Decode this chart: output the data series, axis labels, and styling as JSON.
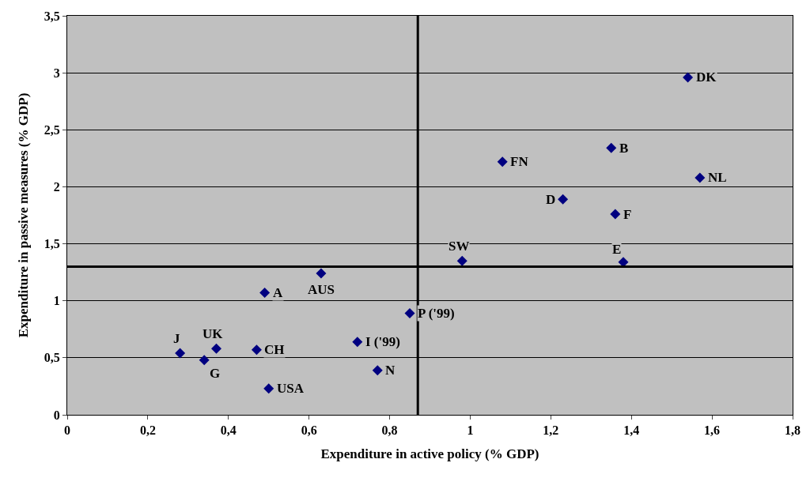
{
  "chart_data": {
    "type": "scatter",
    "xlabel": "Expenditure in active policy (% GDP)",
    "ylabel": "Expenditure in passive measures (% GDP)",
    "x": [
      1.54,
      1.35,
      1.57,
      1.08,
      1.23,
      1.36,
      0.98,
      1.38,
      0.63,
      0.49,
      0.85,
      0.72,
      0.28,
      0.37,
      0.34,
      0.47,
      0.77,
      0.5
    ],
    "series": [
      {
        "color": "#000080",
        "values": [
          2.96,
          2.34,
          2.08,
          2.22,
          1.89,
          1.76,
          1.35,
          1.34,
          1.24,
          1.07,
          0.89,
          0.64,
          0.54,
          0.58,
          0.48,
          0.57,
          0.39,
          0.23
        ]
      }
    ],
    "annotations": [
      {
        "text": "DK",
        "x": 1.54,
        "y": 2.96
      },
      {
        "text": "B",
        "x": 1.35,
        "y": 2.34
      },
      {
        "text": "NL",
        "x": 1.57,
        "y": 2.08
      },
      {
        "text": "FN",
        "x": 1.08,
        "y": 2.22
      },
      {
        "text": "D",
        "x": 1.23,
        "y": 1.89
      },
      {
        "text": "F",
        "x": 1.36,
        "y": 1.76
      },
      {
        "text": "SW",
        "x": 0.98,
        "y": 1.35
      },
      {
        "text": "E",
        "x": 1.38,
        "y": 1.34
      },
      {
        "text": "AUS",
        "x": 0.63,
        "y": 1.24
      },
      {
        "text": "A",
        "x": 0.49,
        "y": 1.07
      },
      {
        "text": "P ('99)",
        "x": 0.85,
        "y": 0.89
      },
      {
        "text": "I ('99)",
        "x": 0.72,
        "y": 0.64
      },
      {
        "text": "J",
        "x": 0.28,
        "y": 0.54
      },
      {
        "text": "UK",
        "x": 0.37,
        "y": 0.58
      },
      {
        "text": "G",
        "x": 0.34,
        "y": 0.48
      },
      {
        "text": "CH",
        "x": 0.47,
        "y": 0.57
      },
      {
        "text": "N",
        "x": 0.77,
        "y": 0.39
      },
      {
        "text": "USA",
        "x": 0.5,
        "y": 0.23
      }
    ],
    "ref_lines": [
      {
        "axis": "x",
        "value": 0.87,
        "color": "#000000"
      },
      {
        "axis": "y",
        "value": 1.3,
        "color": "#000000"
      }
    ],
    "xlim": [
      0,
      1.8
    ],
    "xticks": [
      0,
      {
        "value": 0.2,
        "label": "0,2"
      },
      {
        "value": 0.4,
        "label": "0,4"
      },
      {
        "value": 0.6,
        "label": "0,6"
      },
      {
        "value": 0.8,
        "label": "0,8"
      },
      1,
      {
        "value": 1.2,
        "label": "1,2"
      },
      {
        "value": 1.4,
        "label": "1,4"
      },
      {
        "value": 1.6,
        "label": "1,6"
      },
      {
        "value": 1.8,
        "label": "1,8"
      }
    ],
    "ylim": [
      0,
      3.5
    ],
    "yticks": [
      0,
      {
        "value": 0.5,
        "label": "0,5"
      },
      1,
      {
        "value": 1.5,
        "label": "1,5"
      },
      2,
      {
        "value": 2.5,
        "label": "2,5"
      },
      3,
      {
        "value": 3.5,
        "label": "3,5"
      }
    ],
    "grid": "y",
    "legend": false,
    "marker": "diamond"
  }
}
